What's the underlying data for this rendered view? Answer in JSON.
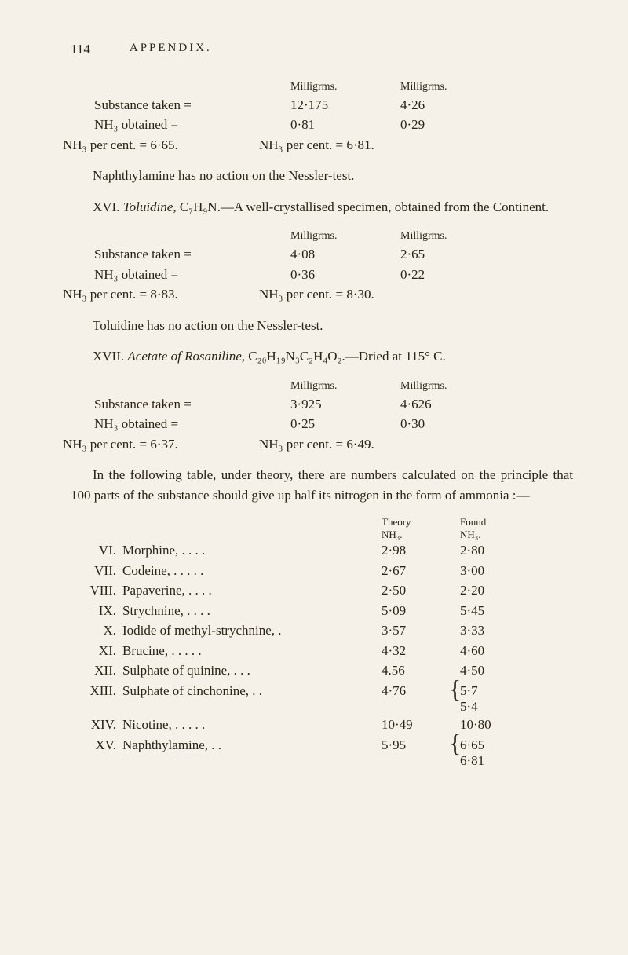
{
  "pageNumber": "114",
  "sectionLabel": "APPENDIX.",
  "col_mg": "Milligrms.",
  "col_mg2": "Milligrms.",
  "block1": {
    "r1": {
      "l": "Substance taken  =",
      "m": "12·175",
      "r": "4·26"
    },
    "r2": {
      "l": "NH₃ obtained      =",
      "m": "0·81",
      "r": "0·29"
    },
    "eqL": "NH₃ per cent.  =  6·65.",
    "eqR": "NH₃ per cent.  =  6·81."
  },
  "p1a": "Naphthylamine has no action on the Nessler-test.",
  "p1b_pre": "XVI. ",
  "p1b_it": "Toluidine,",
  "p1b_post": " C₇H₉N.—A well-crystallised specimen, obtained from the Continent.",
  "block2": {
    "r1": {
      "l": "Substance taken   =",
      "m": "4·08",
      "r": "2·65"
    },
    "r2": {
      "l": "NH₃ obtained       =",
      "m": "0·36",
      "r": "0·22"
    },
    "eqL": "NH₃ per cent.  =  8·83.",
    "eqR": "NH₃ per cent.  =  8·30."
  },
  "p2a": "Toluidine has no action on the Nessler-test.",
  "p2b_pre": "XVII. ",
  "p2b_it": "Acetate of Rosaniline,",
  "p2b_post": " C₂₀H₁₉N₃C₂H₄O₂.—Dried at 115° C.",
  "block3": {
    "r1": {
      "l": "Substance taken   =",
      "m": "3·925",
      "r": "4·626"
    },
    "r2": {
      "l": "NH₃ obtained       =",
      "m": "0·25",
      "r": "0·30"
    },
    "eqL": "NH₃ per cent.  =  6·37.",
    "eqR": "NH₃ per cent.  =  6·49."
  },
  "p3": "In the following table, under theory, there are numbers calculated on the principle that 100 parts of the substance should give up half its nitrogen in the form of ammonia :—",
  "th1": "Theory",
  "th1b": "NH₃.",
  "th2": "Found",
  "th2b": "NH₃.",
  "rows": [
    {
      "n": "VI.",
      "name": "Morphine,    .    .    .    .",
      "c1": "2·98",
      "c2": "2·80"
    },
    {
      "n": "VII.",
      "name": "Codeine,   .    .    .    .    .",
      "c1": "2·67",
      "c2": "3·00"
    },
    {
      "n": "VIII.",
      "name": "Papaverine,    .    .    .    .",
      "c1": "2·50",
      "c2": "2·20"
    },
    {
      "n": "IX.",
      "name": "Strychnine,    .    .    .    .",
      "c1": "5·09",
      "c2": "5·45"
    },
    {
      "n": "X.",
      "name": "Iodide of methyl-strychnine,   .",
      "c1": "3·57",
      "c2": "3·33"
    },
    {
      "n": "XI.",
      "name": "Brucine,   .    .    .    .    .",
      "c1": "4·32",
      "c2": "4·60"
    },
    {
      "n": "XII.",
      "name": "Sulphate of quinine, .    .    .",
      "c1": "4.56",
      "c2": "4·50"
    }
  ],
  "row13": {
    "n": "XIII.",
    "name": "Sulphate of cinchonine,   .    .",
    "c1": "4·76",
    "c2a": "5·7",
    "c2b": "5·4"
  },
  "row14": {
    "n": "XIV.",
    "name": "Nicotine,  .    .    .    .    .",
    "c1": "10·49",
    "c2": "10·80"
  },
  "row15": {
    "n": "XV.",
    "name": "Naphthylamine,     .           .",
    "c1": "5·95",
    "c2a": "6·65",
    "c2b": "6·81"
  }
}
